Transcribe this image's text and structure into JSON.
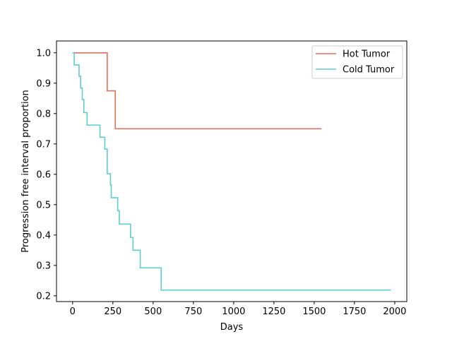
{
  "chart_data": {
    "type": "line",
    "title": "",
    "xlabel": "Days",
    "ylabel": "Progression free interval proportion",
    "xlim": [
      -100,
      2075
    ],
    "ylim": [
      0.181,
      1.039
    ],
    "xticks": [
      0,
      250,
      500,
      750,
      1000,
      1250,
      1500,
      1750,
      2000
    ],
    "yticks": [
      0.2,
      0.3,
      0.4,
      0.5,
      0.6,
      0.7,
      0.8,
      0.9,
      1.0
    ],
    "ytick_labels": [
      "0.2",
      "0.3",
      "0.4",
      "0.5",
      "0.6",
      "0.7",
      "0.8",
      "0.9",
      "1.0"
    ],
    "grid": false,
    "legend_position": "top-right",
    "step": "post",
    "series": [
      {
        "name": "Hot Tumor",
        "color": "#e07060",
        "x": [
          0,
          215,
          265,
          1545
        ],
        "y": [
          1.0,
          0.875,
          0.75,
          0.75
        ]
      },
      {
        "name": "Cold Tumor",
        "color": "#5ecdcd",
        "x": [
          0,
          10,
          40,
          50,
          60,
          70,
          90,
          105,
          170,
          200,
          215,
          235,
          240,
          250,
          280,
          290,
          360,
          375,
          420,
          550,
          1975
        ],
        "y": [
          1.0,
          0.96,
          0.923,
          0.884,
          0.846,
          0.803,
          0.762,
          0.762,
          0.722,
          0.683,
          0.602,
          0.565,
          0.523,
          0.523,
          0.48,
          0.436,
          0.392,
          0.35,
          0.292,
          0.219,
          0.219
        ]
      }
    ]
  }
}
